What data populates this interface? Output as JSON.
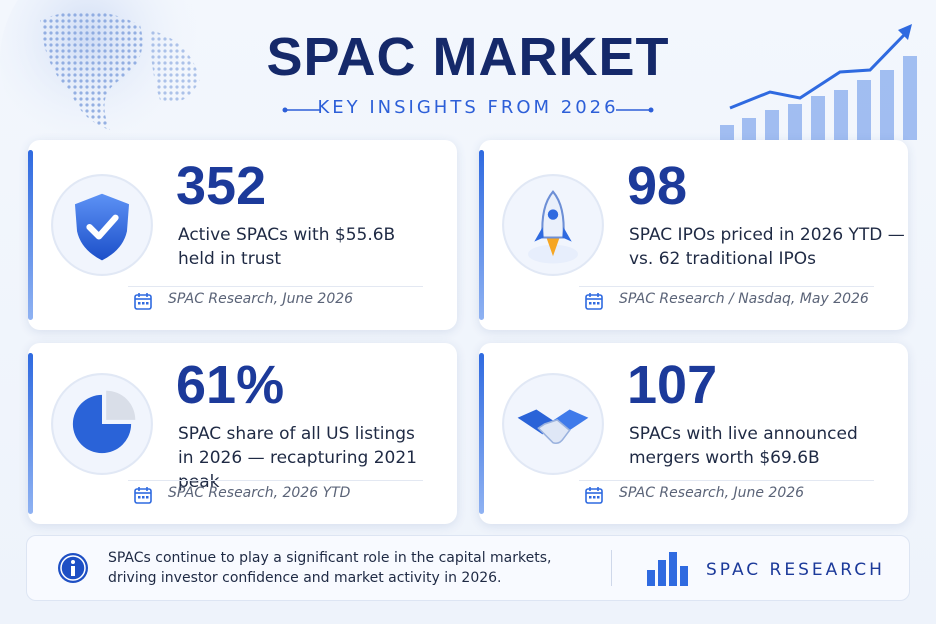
{
  "header": {
    "title": "SPAC MARKET",
    "subtitle": "KEY INSIGHTS FROM 2026"
  },
  "cards": [
    {
      "stat": "352",
      "description": [
        "Active SPACs with $55.6B",
        "held in trust"
      ],
      "source": "SPAC Research, June 2026"
    },
    {
      "stat": "98",
      "description": [
        "SPAC IPOs priced in 2026 YTD —",
        "vs. 62 traditional IPOs"
      ],
      "source": "SPAC Research / Nasdaq, May 2026"
    },
    {
      "stat": "61%",
      "description": [
        "SPAC share of all US listings",
        "in 2026 — recapturing 2021 peak"
      ],
      "source": "SPAC Research, 2026 YTD"
    },
    {
      "stat": "107",
      "description": [
        "SPACs with live announced",
        "mergers worth $69.6B"
      ],
      "source": "SPAC Research, June 2026"
    }
  ],
  "footer": {
    "text": [
      "SPACs continue to play a significant role in the capital markets,",
      "driving investor confidence and market activity in 2026."
    ],
    "brand": "SPAC RESEARCH"
  }
}
